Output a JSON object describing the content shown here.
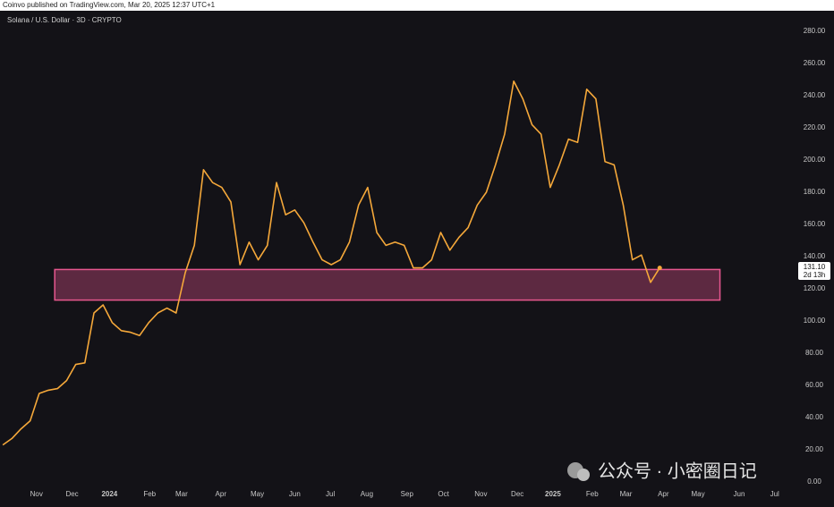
{
  "header": "Coinvo published on TradingView.com, Mar 20, 2025 12:37 UTC+1",
  "chart_data": {
    "type": "line",
    "title": "Solana / U.S. Dollar · 3D · CRYPTO",
    "color": "#f5a83a",
    "values": [
      23,
      27,
      33,
      38,
      55,
      57,
      58,
      63,
      73,
      74,
      105,
      110,
      99,
      94,
      93,
      91,
      99,
      105,
      108,
      105,
      130,
      147,
      194,
      186,
      183,
      174,
      135,
      149,
      138,
      147,
      186,
      166,
      169,
      161,
      149,
      138,
      135,
      138,
      149,
      172,
      183,
      155,
      147,
      149,
      147,
      133,
      133,
      138,
      155,
      144,
      152,
      158,
      172,
      180,
      197,
      216,
      249,
      238,
      222,
      216,
      183,
      197,
      213,
      211,
      244,
      238,
      199,
      197,
      172,
      138,
      141,
      124,
      133
    ],
    "xlim": [
      -0.3,
      86
    ],
    "xticks": [
      {
        "value": 3.7,
        "label": "Nov"
      },
      {
        "value": 7.6,
        "label": "Dec"
      },
      {
        "value": 11.7,
        "label": "2024"
      },
      {
        "value": 16.1,
        "label": "Feb"
      },
      {
        "value": 19.6,
        "label": "Mar"
      },
      {
        "value": 23.9,
        "label": "Apr"
      },
      {
        "value": 27.9,
        "label": "May"
      },
      {
        "value": 32,
        "label": "Jun"
      },
      {
        "value": 35.9,
        "label": "Jul"
      },
      {
        "value": 39.9,
        "label": "Aug"
      },
      {
        "value": 44.3,
        "label": "Sep"
      },
      {
        "value": 48.3,
        "label": "Oct"
      },
      {
        "value": 52.4,
        "label": "Nov"
      },
      {
        "value": 56.4,
        "label": "Dec"
      },
      {
        "value": 60.3,
        "label": "2025"
      },
      {
        "value": 64.6,
        "label": "Feb"
      },
      {
        "value": 68.3,
        "label": "Mar"
      },
      {
        "value": 72.4,
        "label": "Apr"
      },
      {
        "value": 76.2,
        "label": "May"
      },
      {
        "value": 80.7,
        "label": "Jun"
      },
      {
        "value": 84.6,
        "label": "Jul"
      }
    ],
    "ylim": [
      0,
      280
    ],
    "yticks": [
      {
        "value": 0,
        "label": "0.00"
      },
      {
        "value": 20,
        "label": "20.00"
      },
      {
        "value": 40,
        "label": "40.00"
      },
      {
        "value": 60,
        "label": "60.00"
      },
      {
        "value": 80,
        "label": "80.00"
      },
      {
        "value": 100,
        "label": "100.00"
      },
      {
        "value": 120,
        "label": "120.00"
      },
      {
        "value": 140,
        "label": "140.00"
      },
      {
        "value": 160,
        "label": "160.00"
      },
      {
        "value": 180,
        "label": "180.00"
      },
      {
        "value": 200,
        "label": "200.00"
      },
      {
        "value": 220,
        "label": "220.00"
      },
      {
        "value": 240,
        "label": "240.00"
      },
      {
        "value": 260,
        "label": "260.00"
      },
      {
        "value": 280,
        "label": "280.00"
      }
    ],
    "zone": {
      "xmin": 5.7,
      "xmax": 78.6,
      "ymin": 113,
      "ymax": 132,
      "color": "#e8578f"
    },
    "last_price": {
      "value": 131.1,
      "label": "131.10",
      "countdown": "2d 13h"
    },
    "watermark": "公众号 · 小密圈日记"
  }
}
